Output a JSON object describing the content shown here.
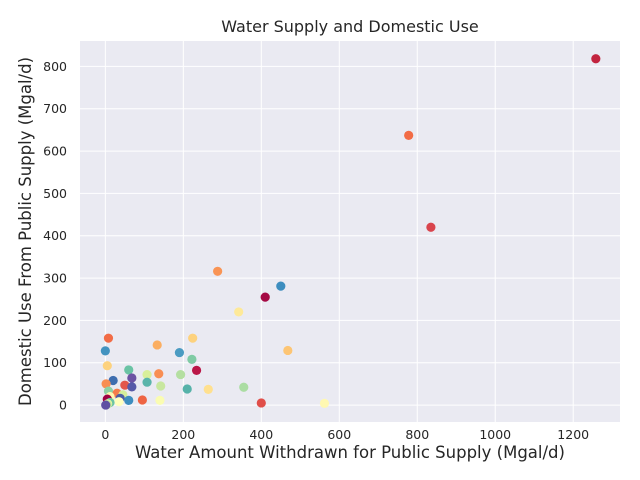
{
  "chart_data": {
    "type": "scatter",
    "title": "Water Supply and Domestic Use",
    "xlabel": "Water Amount Withdrawn for Public Supply (Mgal/d)",
    "ylabel": "Domestic Use From Public Supply (Mgal/d)",
    "xlim": [
      -65,
      1320
    ],
    "ylim": [
      -40,
      860
    ],
    "xticks": [
      0,
      200,
      400,
      600,
      800,
      1000,
      1200
    ],
    "yticks": [
      0,
      100,
      200,
      300,
      400,
      500,
      600,
      700,
      800
    ],
    "grid": true,
    "background": "#EAEAF2",
    "points": [
      {
        "x": 1258,
        "y": 818,
        "color": "#C2243F"
      },
      {
        "x": 778,
        "y": 637,
        "color": "#F26C46"
      },
      {
        "x": 835,
        "y": 420,
        "color": "#D9444D"
      },
      {
        "x": 288,
        "y": 316,
        "color": "#F99455"
      },
      {
        "x": 450,
        "y": 281,
        "color": "#3D8DBF"
      },
      {
        "x": 410,
        "y": 255,
        "color": "#A50A44"
      },
      {
        "x": 342,
        "y": 220,
        "color": "#FEE999"
      },
      {
        "x": 8,
        "y": 158,
        "color": "#F26C46"
      },
      {
        "x": 224,
        "y": 158,
        "color": "#FDD27E"
      },
      {
        "x": 133,
        "y": 142,
        "color": "#FBAE61"
      },
      {
        "x": 468,
        "y": 129,
        "color": "#FDC574"
      },
      {
        "x": 0,
        "y": 128,
        "color": "#4393C0"
      },
      {
        "x": 190,
        "y": 124,
        "color": "#4B9BC2"
      },
      {
        "x": 222,
        "y": 108,
        "color": "#7FCBA4"
      },
      {
        "x": 5,
        "y": 93,
        "color": "#FDD27E"
      },
      {
        "x": 60,
        "y": 83,
        "color": "#6AC3A4"
      },
      {
        "x": 234,
        "y": 82,
        "color": "#BA1747"
      },
      {
        "x": 137,
        "y": 74,
        "color": "#F88E53"
      },
      {
        "x": 107,
        "y": 72,
        "color": "#D9EF9B"
      },
      {
        "x": 193,
        "y": 72,
        "color": "#B4DFA1"
      },
      {
        "x": 68,
        "y": 64,
        "color": "#6C52A3"
      },
      {
        "x": 20,
        "y": 58,
        "color": "#3E6DAF"
      },
      {
        "x": 107,
        "y": 54,
        "color": "#5AB4AA"
      },
      {
        "x": 2,
        "y": 50,
        "color": "#F88E53"
      },
      {
        "x": 50,
        "y": 47,
        "color": "#E3564B"
      },
      {
        "x": 142,
        "y": 45,
        "color": "#C8E79F"
      },
      {
        "x": 68,
        "y": 43,
        "color": "#5659A8"
      },
      {
        "x": 355,
        "y": 42,
        "color": "#ABDDA3"
      },
      {
        "x": 210,
        "y": 38,
        "color": "#56B2A9"
      },
      {
        "x": 264,
        "y": 37,
        "color": "#FFE08F"
      },
      {
        "x": 8,
        "y": 33,
        "color": "#8DD1A5"
      },
      {
        "x": 30,
        "y": 28,
        "color": "#F57B4A"
      },
      {
        "x": 45,
        "y": 24,
        "color": "#D4ED9B"
      },
      {
        "x": 12,
        "y": 20,
        "color": "#FFF5AF"
      },
      {
        "x": 38,
        "y": 16,
        "color": "#4A5CA6"
      },
      {
        "x": 5,
        "y": 14,
        "color": "#9E0142"
      },
      {
        "x": 95,
        "y": 12,
        "color": "#EE6443"
      },
      {
        "x": 60,
        "y": 11,
        "color": "#3D8DBF"
      },
      {
        "x": 140,
        "y": 11,
        "color": "#FAFCB2"
      },
      {
        "x": 35,
        "y": 8,
        "color": "#FFFFBE"
      },
      {
        "x": 12,
        "y": 6,
        "color": "#6AC3A4"
      },
      {
        "x": 400,
        "y": 5,
        "color": "#E04E49"
      },
      {
        "x": 562,
        "y": 4,
        "color": "#FFF8B2"
      },
      {
        "x": 6,
        "y": 3,
        "color": "#E8F69C"
      },
      {
        "x": 4,
        "y": 1,
        "color": "#C0E59F"
      },
      {
        "x": 1,
        "y": 0,
        "color": "#5E4FA2"
      }
    ]
  }
}
